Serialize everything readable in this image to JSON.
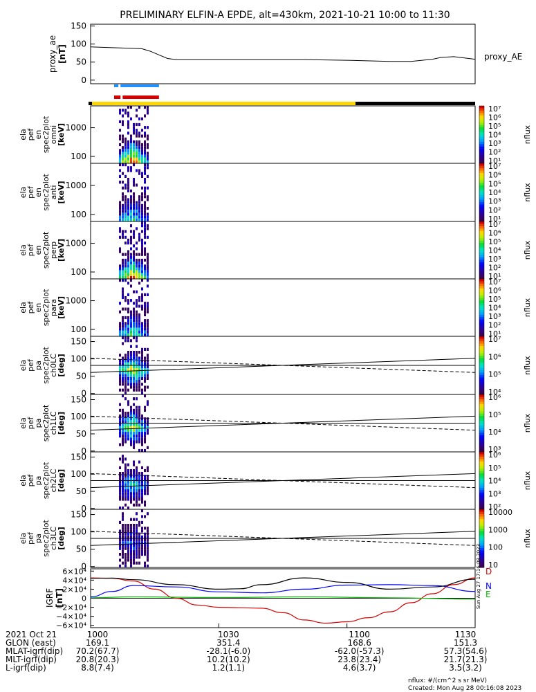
{
  "title": "PRELIMINARY ELFIN-A EPDE, alt=430km, 2021-10-21 10:00 to 11:30",
  "chart_data": [
    {
      "id": "proxy-ae",
      "type": "line",
      "ylabel": "proxy_ae [nT]",
      "ylabel_lines": [
        "proxy_ae",
        "[nT]"
      ],
      "series_label": "proxy_AE",
      "yticks": [
        "150",
        "100",
        "50",
        "0"
      ],
      "ytick_values": [
        150,
        100,
        50,
        0
      ],
      "ylim": [
        -10,
        155
      ],
      "xlim": [
        0,
        90
      ],
      "x_minutes": [
        0,
        5,
        10,
        12,
        14,
        16,
        18,
        20,
        25,
        30,
        40,
        50,
        55,
        60,
        70,
        75,
        80,
        82,
        85,
        90
      ],
      "y": [
        92,
        90,
        88,
        87,
        80,
        70,
        60,
        57,
        57,
        57,
        57,
        57,
        56,
        55,
        52,
        52,
        58,
        63,
        65,
        58
      ]
    },
    {
      "id": "state-bars",
      "type": "bar",
      "description_colors": {
        "science": "#1e90ff",
        "fast": "#d40000",
        "day": "#ffd700",
        "night": "#000000"
      },
      "science_x": [
        [
          5.5,
          6.5
        ],
        [
          7,
          16
        ]
      ],
      "fast_x": [
        [
          5.5,
          7
        ],
        [
          7.5,
          16
        ]
      ],
      "yellow_x": [
        0.5,
        62
      ],
      "black_x": [
        62,
        90
      ]
    },
    {
      "id": "omni",
      "type": "heatmap",
      "ylabel_lines": [
        "ela",
        "pef",
        "en",
        "spec2plot",
        "omni",
        "[keV]"
      ],
      "yticks": [
        "1000",
        "100"
      ],
      "cbar_ticks": [
        "10⁷",
        "10⁶",
        "10⁵",
        "10⁴",
        "10³",
        "10²",
        "10¹"
      ],
      "cbar_label": "nflux"
    },
    {
      "id": "anti",
      "type": "heatmap",
      "ylabel_lines": [
        "ela",
        "pef",
        "en",
        "spec2plot",
        "anti",
        "[keV]"
      ],
      "yticks": [
        "1000",
        "100"
      ],
      "cbar_ticks": [
        "10⁷",
        "10⁶",
        "10⁵",
        "10⁴",
        "10³",
        "10²",
        "10¹"
      ],
      "cbar_label": "nflux"
    },
    {
      "id": "perp",
      "type": "heatmap",
      "ylabel_lines": [
        "ela",
        "pef",
        "en",
        "spec2plot",
        "perp",
        "[keV]"
      ],
      "yticks": [
        "1000",
        "100"
      ],
      "cbar_ticks": [
        "10⁷",
        "10⁶",
        "10⁵",
        "10⁴",
        "10³",
        "10²",
        "10¹"
      ],
      "cbar_label": "nflux"
    },
    {
      "id": "para",
      "type": "heatmap",
      "ylabel_lines": [
        "ela",
        "pef",
        "en",
        "spec2plot",
        "para",
        "[keV]"
      ],
      "yticks": [
        "1000",
        "100"
      ],
      "cbar_ticks": [
        "10⁷",
        "10⁶",
        "10⁵",
        "10⁴",
        "10³",
        "10²",
        "10¹"
      ],
      "cbar_label": "nflux"
    },
    {
      "id": "ch0LC",
      "type": "heatmap",
      "ylabel_lines": [
        "ela",
        "pef",
        "pa",
        "spec2plot",
        "ch0LC",
        "[deg]"
      ],
      "yticks": [
        "150",
        "100",
        "50",
        "0"
      ],
      "cbar_ticks": [
        "10⁷",
        "10⁶",
        "10⁵",
        "10⁴"
      ],
      "cbar_label": "nflux"
    },
    {
      "id": "ch1LC",
      "type": "heatmap",
      "ylabel_lines": [
        "ela",
        "pef",
        "pa",
        "spec2plot",
        "ch1LC",
        "[deg]"
      ],
      "yticks": [
        "150",
        "100",
        "50",
        "0"
      ],
      "cbar_ticks": [
        "10⁶",
        "10⁵",
        "10⁴",
        "10³"
      ],
      "cbar_label": "nflux"
    },
    {
      "id": "ch2LC",
      "type": "heatmap",
      "ylabel_lines": [
        "ela",
        "pef",
        "pa",
        "spec2plot",
        "ch2LC",
        "[deg]"
      ],
      "yticks": [
        "150",
        "100",
        "50",
        "0"
      ],
      "cbar_ticks": [
        "10⁶",
        "10⁵",
        "10⁴",
        "10³",
        "10²"
      ],
      "cbar_label": "nflux"
    },
    {
      "id": "ch3LC",
      "type": "heatmap",
      "ylabel_lines": [
        "ela",
        "pef",
        "pa",
        "spec2plot",
        "ch3LC",
        "[deg]"
      ],
      "yticks": [
        "150",
        "100",
        "50",
        "0"
      ],
      "cbar_ticks": [
        "10000",
        "1000",
        "100",
        "10"
      ],
      "cbar_label": "nflux"
    },
    {
      "id": "igrf",
      "type": "line",
      "ylabel_lines": [
        "IGRF",
        "[nT]"
      ],
      "yticks": [
        "6×10⁴",
        "4×10⁴",
        "2×10⁴",
        "0",
        "−2×10⁴",
        "−4×10⁴",
        "−6×10⁴"
      ],
      "ytick_values": [
        60000,
        40000,
        20000,
        0,
        -20000,
        -40000,
        -60000
      ],
      "ylim": [
        -65000,
        65000
      ],
      "xlim": [
        0,
        90
      ],
      "series": [
        {
          "name": "D",
          "color": "#d40000",
          "x": [
            0,
            5,
            10,
            15,
            20,
            25,
            30,
            35,
            40,
            45,
            50,
            55,
            60,
            65,
            70,
            75,
            80,
            85,
            90
          ],
          "y": [
            45000,
            44000,
            38000,
            20000,
            0,
            -15000,
            -20000,
            -21000,
            -22000,
            -32000,
            -48000,
            -55000,
            -52000,
            -43000,
            -30000,
            -10000,
            10000,
            30000,
            45000
          ]
        },
        {
          "name": "N",
          "color": "#0000ff",
          "x": [
            0,
            5,
            10,
            20,
            30,
            40,
            50,
            60,
            70,
            80,
            90
          ],
          "y": [
            3000,
            15000,
            28000,
            25000,
            14000,
            12000,
            20000,
            29000,
            30000,
            28000,
            15000
          ]
        },
        {
          "name": "E",
          "color": "#00bb00",
          "x": [
            0,
            10,
            30,
            50,
            70,
            90
          ],
          "y": [
            1000,
            3000,
            1500,
            3000,
            1000,
            -2000
          ]
        },
        {
          "name": "total",
          "color": "#000000",
          "x": [
            0,
            5,
            10,
            20,
            30,
            35,
            40,
            50,
            60,
            70,
            80,
            90
          ],
          "y": [
            44000,
            44500,
            41000,
            30000,
            20000,
            21000,
            30000,
            45000,
            35000,
            20000,
            25000,
            42000
          ]
        }
      ],
      "side_labels": [
        "D",
        "N",
        "E"
      ],
      "stamp": "Sun Aug 27 17:16:08 2023"
    }
  ],
  "time_axis": {
    "labels": [
      "1000",
      "1030",
      "1100",
      "1130"
    ],
    "label_minutes": [
      0,
      30,
      60,
      90
    ]
  },
  "ephemeris": {
    "rows": [
      {
        "label": "2021 Oct 21",
        "values": [
          "1000",
          "1030",
          "1100",
          "1130"
        ]
      },
      {
        "label": "GLON (east)",
        "values": [
          "169.1",
          "351.4",
          "168.6",
          "151.3"
        ]
      },
      {
        "label": "MLAT-igrf(dip)",
        "values": [
          "70.2(67.7)",
          "-28.1(-6.0)",
          "-62.0(-57.3)",
          "57.3(54.6)"
        ]
      },
      {
        "label": "MLT-igrf(dip)",
        "values": [
          "20.8(20.3)",
          "10.2(10.2)",
          "23.8(23.4)",
          "21.7(21.3)"
        ]
      },
      {
        "label": "L-igrf(dip)",
        "values": [
          "8.8(7.4)",
          "1.2(1.1)",
          "4.6(3.7)",
          "3.5(3.2)"
        ]
      }
    ]
  },
  "footer": {
    "nflux_units": "nflux: #/(cm^2 s sr MeV)",
    "created": "Created: Mon Aug 28 00:16:08 2023"
  }
}
